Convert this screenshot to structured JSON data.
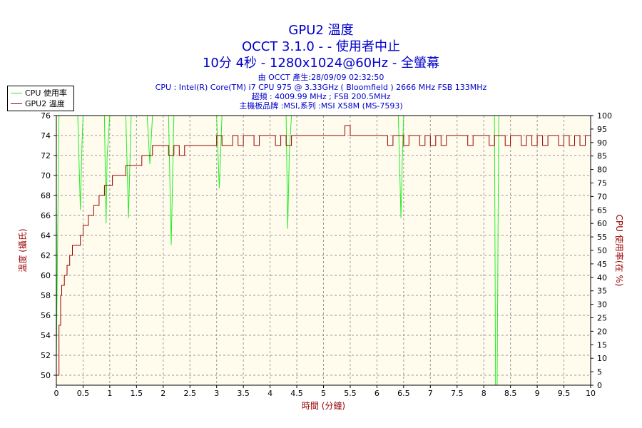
{
  "header": {
    "title": "GPU2 溫度",
    "subtitle_1": "OCCT 3.1.0 -  - 使用者中止",
    "subtitle_2": "10分 4秒 - 1280x1024@60Hz - 全螢幕",
    "info_lines": [
      "由 OCCT 產生:28/09/09 02:32:50",
      "CPU : Intel(R) Core(TM) i7 CPU 975 @ 3.33GHz ( Bloomfield ) 2666 MHz FSB 133MHz",
      "超頻 : 4009.99 MHz ; FSB 200.5MHz",
      "主機板品牌 :MSI,系列 :MSI X58M (MS-7593)"
    ]
  },
  "colors": {
    "title": "#0000cc",
    "axis_label": "#990000",
    "plot_bg": "#fffcee",
    "grid": "#999999",
    "cpu_series": "#22ee22",
    "gpu_series": "#990000"
  },
  "chart_data": {
    "type": "line",
    "title": "GPU2 溫度",
    "xlabel": "時間 (分鐘)",
    "ylabel_left": "溫度 (攝氏)",
    "ylabel_right": "CPU 使用率(在 %)",
    "xlim": [
      0,
      10
    ],
    "ylim_left": [
      49,
      76
    ],
    "ylim_right": [
      0,
      100
    ],
    "x_ticks": [
      "0",
      "0.5",
      "1",
      "1.5",
      "2",
      "2.5",
      "3",
      "3.5",
      "4",
      "4.5",
      "5",
      "5.5",
      "6",
      "6.5",
      "7",
      "7.5",
      "8",
      "8.5",
      "9",
      "9.5",
      "10"
    ],
    "y_left_ticks": [
      50,
      52,
      54,
      56,
      58,
      60,
      62,
      64,
      66,
      68,
      70,
      72,
      74,
      76
    ],
    "y_right_ticks": [
      0,
      5,
      10,
      15,
      20,
      25,
      30,
      35,
      40,
      45,
      50,
      55,
      60,
      65,
      70,
      75,
      80,
      85,
      90,
      95,
      100
    ],
    "grid": true,
    "legend_position": "top-left",
    "series": [
      {
        "name": "CPU 使用率",
        "axis": "right",
        "x": [
          0,
          0.05,
          0.1,
          0.2,
          0.3,
          0.4,
          0.45,
          0.48,
          0.5,
          0.55,
          0.6,
          0.7,
          0.8,
          0.85,
          0.9,
          0.93,
          0.95,
          1.0,
          1.1,
          1.2,
          1.3,
          1.35,
          1.4,
          1.5,
          1.6,
          1.7,
          1.75,
          1.8,
          1.9,
          2.0,
          2.1,
          2.15,
          2.2,
          2.25,
          2.3,
          2.4,
          2.5,
          2.6,
          2.7,
          2.8,
          2.9,
          3.0,
          3.05,
          3.1,
          3.2,
          3.3,
          3.4,
          3.5,
          3.6,
          3.7,
          3.8,
          3.9,
          4.0,
          4.1,
          4.2,
          4.3,
          4.33,
          4.36,
          4.4,
          4.5,
          4.6,
          4.7,
          4.8,
          4.9,
          5.0,
          5.1,
          5.2,
          5.3,
          5.4,
          5.5,
          5.6,
          5.7,
          5.8,
          5.9,
          6.0,
          6.1,
          6.2,
          6.3,
          6.4,
          6.45,
          6.48,
          6.5,
          6.6,
          6.7,
          6.8,
          6.9,
          7.0,
          7.1,
          7.2,
          7.3,
          7.4,
          7.5,
          7.6,
          7.7,
          7.8,
          7.9,
          8.0,
          8.1,
          8.2,
          8.22,
          8.25,
          8.28,
          8.3,
          8.4,
          8.5,
          8.6,
          8.7,
          8.8,
          8.9,
          9.0,
          9.1,
          9.2,
          9.3,
          9.4,
          9.5,
          9.6,
          9.7,
          9.8,
          9.9,
          10.0
        ],
        "values": [
          10,
          100,
          100,
          100,
          100,
          100,
          65,
          90,
          100,
          100,
          100,
          100,
          100,
          100,
          100,
          60,
          85,
          100,
          100,
          100,
          100,
          62,
          100,
          100,
          100,
          100,
          82,
          100,
          100,
          100,
          100,
          52,
          100,
          100,
          100,
          100,
          100,
          100,
          100,
          100,
          100,
          100,
          73,
          100,
          100,
          100,
          100,
          100,
          100,
          100,
          100,
          100,
          100,
          100,
          100,
          100,
          58,
          86,
          100,
          100,
          100,
          100,
          100,
          100,
          100,
          100,
          100,
          100,
          100,
          100,
          100,
          100,
          100,
          100,
          100,
          100,
          100,
          100,
          100,
          62,
          88,
          100,
          100,
          100,
          100,
          100,
          100,
          100,
          100,
          100,
          100,
          100,
          100,
          100,
          100,
          100,
          100,
          100,
          100,
          0,
          0,
          100,
          100,
          100,
          100,
          100,
          100,
          100,
          100,
          100,
          100,
          100,
          100,
          100,
          100,
          100,
          100,
          100,
          100,
          100
        ]
      },
      {
        "name": "GPU2 溫度",
        "axis": "left",
        "x": [
          0,
          0.02,
          0.05,
          0.08,
          0.1,
          0.15,
          0.2,
          0.25,
          0.3,
          0.35,
          0.4,
          0.45,
          0.5,
          0.55,
          0.6,
          0.65,
          0.7,
          0.75,
          0.8,
          0.85,
          0.9,
          0.95,
          1.0,
          1.05,
          1.1,
          1.2,
          1.3,
          1.4,
          1.5,
          1.6,
          1.7,
          1.75,
          1.8,
          1.9,
          2.0,
          2.1,
          2.2,
          2.3,
          2.4,
          2.5,
          2.6,
          2.7,
          2.8,
          2.9,
          3.0,
          3.1,
          3.2,
          3.3,
          3.4,
          3.5,
          3.6,
          3.7,
          3.8,
          3.9,
          4.0,
          4.1,
          4.2,
          4.3,
          4.4,
          4.5,
          4.6,
          4.7,
          4.8,
          4.9,
          5.0,
          5.1,
          5.2,
          5.3,
          5.4,
          5.5,
          5.6,
          5.7,
          5.8,
          5.9,
          6.0,
          6.1,
          6.2,
          6.3,
          6.4,
          6.5,
          6.6,
          6.7,
          6.8,
          6.9,
          7.0,
          7.1,
          7.2,
          7.3,
          7.4,
          7.5,
          7.6,
          7.7,
          7.8,
          7.9,
          8.0,
          8.1,
          8.2,
          8.3,
          8.4,
          8.5,
          8.6,
          8.7,
          8.8,
          8.9,
          9.0,
          9.1,
          9.2,
          9.3,
          9.4,
          9.5,
          9.6,
          9.7,
          9.8,
          9.9,
          10.0
        ],
        "values": [
          50,
          50,
          55,
          58,
          59,
          60,
          61,
          62,
          63,
          63,
          63,
          64,
          65,
          65,
          66,
          66,
          67,
          67,
          68,
          68,
          69,
          69,
          69,
          70,
          70,
          70,
          71,
          71,
          71,
          72,
          72,
          72,
          73,
          73,
          73,
          72,
          73,
          72,
          73,
          73,
          73,
          73,
          73,
          73,
          74,
          73,
          73,
          74,
          73,
          74,
          74,
          73,
          74,
          74,
          74,
          73,
          74,
          73,
          74,
          74,
          74,
          74,
          74,
          74,
          74,
          74,
          74,
          74,
          75,
          74,
          74,
          74,
          74,
          74,
          74,
          74,
          73,
          74,
          74,
          73,
          74,
          74,
          73,
          74,
          73,
          74,
          73,
          74,
          74,
          74,
          74,
          73,
          74,
          74,
          74,
          73,
          74,
          74,
          73,
          74,
          74,
          73,
          74,
          73,
          74,
          73,
          74,
          74,
          73,
          74,
          73,
          74,
          73,
          74,
          74
        ]
      }
    ]
  }
}
